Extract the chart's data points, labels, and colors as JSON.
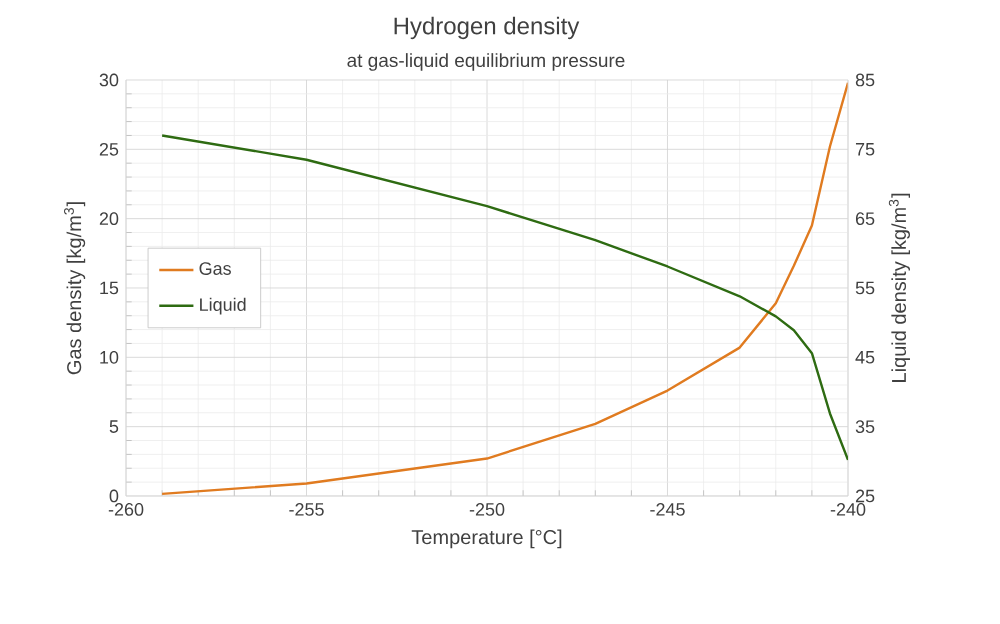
{
  "chart_data": {
    "type": "line",
    "title": "Hydrogen density",
    "subtitle": "at gas-liquid equilibrium pressure",
    "xlabel": "Temperature [°C]",
    "ylabel": "Gas density [kg/m$^{3}$]",
    "y2label": "Liquid density [kg/m$^{3}$]",
    "x": [
      -259,
      -255,
      -250,
      -247,
      -245,
      -243,
      -242,
      -241.5,
      -241,
      -240.5,
      -240
    ],
    "series": [
      {
        "name": "Gas",
        "color": "#e07b20",
        "values": [
          0.15,
          0.9,
          2.7,
          5.2,
          7.6,
          10.7,
          13.9,
          16.6,
          19.5,
          25.2,
          29.8
        ]
      },
      {
        "name": "Liquid",
        "color": "#2e6b12",
        "axis": "y2",
        "values": [
          77,
          73.5,
          66.8,
          61.9,
          58.1,
          53.8,
          50.9,
          48.9,
          45.6,
          36.9,
          30.2
        ]
      }
    ],
    "xlim": [
      -260,
      -240
    ],
    "xticks": [
      -260,
      -255,
      -250,
      -245,
      -240
    ],
    "ylim": [
      0,
      30
    ],
    "yticks": [
      0,
      5,
      10,
      15,
      20,
      25,
      30
    ],
    "y2lim": [
      25,
      85
    ],
    "y2ticks": [
      25,
      35,
      45,
      55,
      65,
      75,
      85
    ],
    "grid": true,
    "legend": "left",
    "marker": "none",
    "line_style": "solid"
  }
}
